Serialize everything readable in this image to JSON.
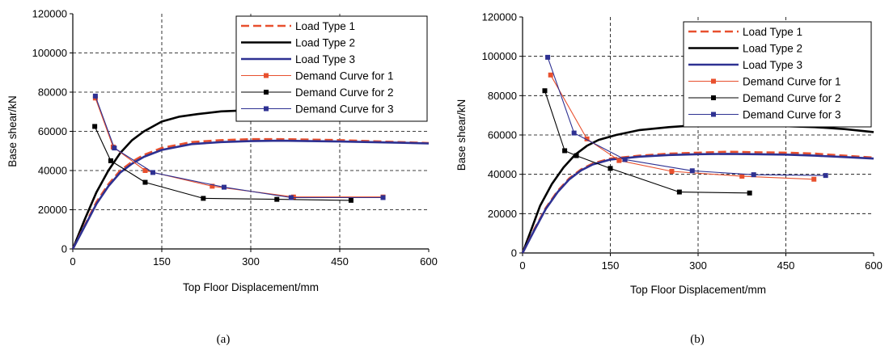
{
  "chart_data": [
    {
      "type": "line",
      "panel_label": "(a)",
      "xlabel": "Top Floor Displacement/mm",
      "ylabel": "Base shear/kN",
      "xlim": [
        0,
        600
      ],
      "ylim": [
        0,
        120000
      ],
      "xticks": [
        "0",
        "150",
        "300",
        "450",
        "600"
      ],
      "yticks": [
        "0",
        "20000",
        "40000",
        "60000",
        "80000",
        "100000",
        "120000"
      ],
      "grid": true,
      "legend_position": "top-right",
      "series": [
        {
          "name": "Load Type 1",
          "color": "#E8502E",
          "style": "dashed",
          "marker": "none",
          "x": [
            0,
            20,
            40,
            60,
            80,
            100,
            120,
            150,
            200,
            250,
            300,
            350,
            400,
            450,
            500,
            550,
            600
          ],
          "y": [
            0,
            12000,
            24000,
            33000,
            40000,
            44500,
            48000,
            51500,
            54500,
            55500,
            56000,
            56000,
            55800,
            55500,
            55000,
            54500,
            54000
          ]
        },
        {
          "name": "Load Type 2",
          "color": "#000000",
          "style": "solid",
          "marker": "none",
          "x": [
            0,
            20,
            40,
            60,
            80,
            100,
            120,
            150,
            180,
            210,
            250,
            300,
            350,
            400,
            450,
            510
          ],
          "y": [
            0,
            15000,
            29000,
            40000,
            49000,
            55500,
            60000,
            65000,
            67500,
            68800,
            70200,
            70800,
            70800,
            70400,
            69700,
            68200
          ]
        },
        {
          "name": "Load Type 3",
          "color": "#2E3192",
          "style": "solid",
          "marker": "none",
          "x": [
            0,
            20,
            40,
            60,
            80,
            100,
            120,
            150,
            200,
            250,
            300,
            350,
            400,
            450,
            500,
            550,
            600
          ],
          "y": [
            0,
            11500,
            23000,
            32000,
            39000,
            43500,
            47000,
            50500,
            53500,
            54500,
            55000,
            55200,
            55000,
            54800,
            54500,
            54200,
            53800
          ]
        },
        {
          "name": "Demand Curve for 1",
          "color": "#E8502E",
          "style": "thin",
          "marker": "square",
          "x": [
            38,
            68,
            122,
            235,
            372,
            523
          ],
          "y": [
            77000,
            52000,
            40000,
            32000,
            26500,
            26500
          ]
        },
        {
          "name": "Demand Curve for 2",
          "color": "#000000",
          "style": "thin",
          "marker": "square",
          "x": [
            37,
            64,
            122,
            220,
            344,
            469
          ],
          "y": [
            62500,
            45000,
            34000,
            25800,
            25300,
            24800
          ]
        },
        {
          "name": "Demand Curve for 3",
          "color": "#2E3192",
          "style": "thin",
          "marker": "square",
          "x": [
            38,
            70,
            135,
            255,
            368,
            523
          ],
          "y": [
            78000,
            51500,
            39000,
            31500,
            26200,
            26200
          ]
        }
      ]
    },
    {
      "type": "line",
      "panel_label": "(b)",
      "xlabel": "Top Floor Displacement/mm",
      "ylabel": "Base shear/kN",
      "xlim": [
        0,
        600
      ],
      "ylim": [
        0,
        120000
      ],
      "xticks": [
        "0",
        "150",
        "300",
        "450",
        "600"
      ],
      "yticks": [
        "0",
        "20000",
        "40000",
        "60000",
        "80000",
        "100000",
        "120000"
      ],
      "grid": true,
      "legend_position": "top-right",
      "series": [
        {
          "name": "Load Type 1",
          "color": "#E8502E",
          "style": "dashed",
          "marker": "none",
          "x": [
            0,
            20,
            40,
            60,
            80,
            100,
            120,
            150,
            200,
            250,
            300,
            350,
            400,
            450,
            500,
            550,
            600
          ],
          "y": [
            0,
            12000,
            23000,
            31500,
            38000,
            42500,
            45500,
            48000,
            49500,
            50500,
            51000,
            51500,
            51200,
            51000,
            50500,
            49500,
            48500
          ]
        },
        {
          "name": "Load Type 2",
          "color": "#000000",
          "style": "solid",
          "marker": "none",
          "x": [
            0,
            15,
            30,
            50,
            70,
            90,
            110,
            130,
            160,
            200,
            250,
            300,
            350,
            400,
            450,
            500,
            550,
            600
          ],
          "y": [
            0,
            12000,
            24000,
            35000,
            43500,
            50000,
            54500,
            57500,
            60000,
            62500,
            64000,
            65000,
            65000,
            65000,
            64500,
            64000,
            63000,
            61500
          ]
        },
        {
          "name": "Load Type 3",
          "color": "#2E3192",
          "style": "solid",
          "marker": "none",
          "x": [
            0,
            20,
            40,
            60,
            80,
            100,
            120,
            150,
            200,
            250,
            300,
            350,
            400,
            450,
            500,
            550,
            600
          ],
          "y": [
            0,
            11500,
            22500,
            31000,
            37500,
            42000,
            45000,
            47500,
            49000,
            49800,
            50200,
            50400,
            50200,
            50000,
            49500,
            48800,
            48000
          ]
        },
        {
          "name": "Demand Curve for 1",
          "color": "#E8502E",
          "style": "thin",
          "marker": "square",
          "x": [
            48,
            110,
            165,
            255,
            375,
            498
          ],
          "y": [
            90500,
            58000,
            47000,
            41500,
            39000,
            37500
          ]
        },
        {
          "name": "Demand Curve for 2",
          "color": "#000000",
          "style": "thin",
          "marker": "square",
          "x": [
            38,
            72,
            92,
            150,
            268,
            388
          ],
          "y": [
            82500,
            52000,
            49500,
            43000,
            31000,
            30500
          ]
        },
        {
          "name": "Demand Curve for 3",
          "color": "#2E3192",
          "style": "thin",
          "marker": "square",
          "x": [
            43,
            88,
            175,
            290,
            395,
            518
          ],
          "y": [
            99500,
            61000,
            47500,
            41800,
            39800,
            39400
          ]
        }
      ]
    }
  ]
}
